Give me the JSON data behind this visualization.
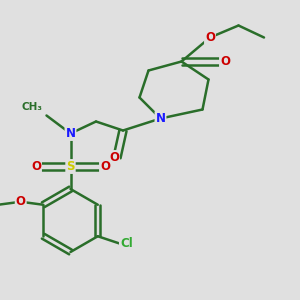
{
  "background_color": "#e0e0e0",
  "bond_color": "#2a6e2a",
  "bond_width": 1.8,
  "atom_colors": {
    "N": "#1a1aff",
    "O": "#cc0000",
    "S": "#cccc00",
    "Cl": "#33aa33",
    "C": "#2a6e2a"
  },
  "font_size": 8.5
}
